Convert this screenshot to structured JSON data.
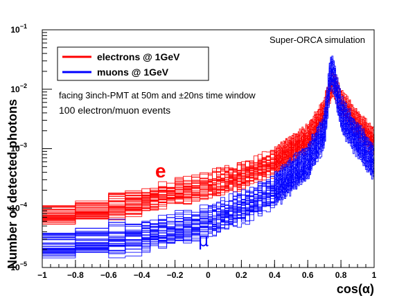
{
  "chart_data": {
    "type": "line",
    "title": "Super-ORCA simulation",
    "xlabel": "cos(α)",
    "ylabel": "Number of detected photons",
    "xlim": [
      -1,
      1
    ],
    "ylim": [
      1e-05,
      0.1
    ],
    "y_scale": "log",
    "grid": false,
    "legend_position": "top-left",
    "x_ticks": [
      "−1",
      "−0.8",
      "−0.6",
      "−0.4",
      "−0.2",
      "0",
      "0.2",
      "0.4",
      "0.6",
      "0.8",
      "1"
    ],
    "x_tick_values": [
      -1,
      -0.8,
      -0.6,
      -0.4,
      -0.2,
      0,
      0.2,
      0.4,
      0.6,
      0.8,
      1
    ],
    "y_ticks": [
      {
        "value": 1e-05,
        "base": "10",
        "exp": "−5"
      },
      {
        "value": 0.0001,
        "base": "10",
        "exp": "−4"
      },
      {
        "value": 0.001,
        "base": "10",
        "exp": "−3"
      },
      {
        "value": 0.01,
        "base": "10",
        "exp": "−2"
      },
      {
        "value": 0.1,
        "base": "10",
        "exp": "−1"
      }
    ],
    "annotations": [
      "facing 3inch-PMT at 50m and ±20ns time window",
      "100 electron/muon events"
    ],
    "series": [
      {
        "name": "electrons @ 1GeV",
        "label": "e",
        "color": "#ff0000",
        "x": [
          -1.0,
          -0.8,
          -0.6,
          -0.4,
          -0.2,
          0.0,
          0.2,
          0.4,
          0.6,
          0.7,
          0.74,
          0.76,
          0.8,
          0.9,
          1.0
        ],
        "y": [
          7e-05,
          8.5e-05,
          0.0001,
          0.00013,
          0.00018,
          0.00025,
          0.00035,
          0.0006,
          0.0015,
          0.004,
          0.012,
          0.013,
          0.006,
          0.0025,
          0.0013
        ]
      },
      {
        "name": "muons @ 1GeV",
        "label": "μ",
        "color": "#0000ff",
        "x": [
          -1.0,
          -0.8,
          -0.6,
          -0.4,
          -0.2,
          0.0,
          0.2,
          0.4,
          0.6,
          0.7,
          0.74,
          0.76,
          0.8,
          0.9,
          1.0
        ],
        "y": [
          2.2e-05,
          2.6e-05,
          3e-05,
          3.5e-05,
          4.5e-05,
          6e-05,
          0.0001,
          0.0002,
          0.0006,
          0.002,
          0.022,
          0.015,
          0.004,
          0.0014,
          0.0006
        ]
      }
    ]
  }
}
